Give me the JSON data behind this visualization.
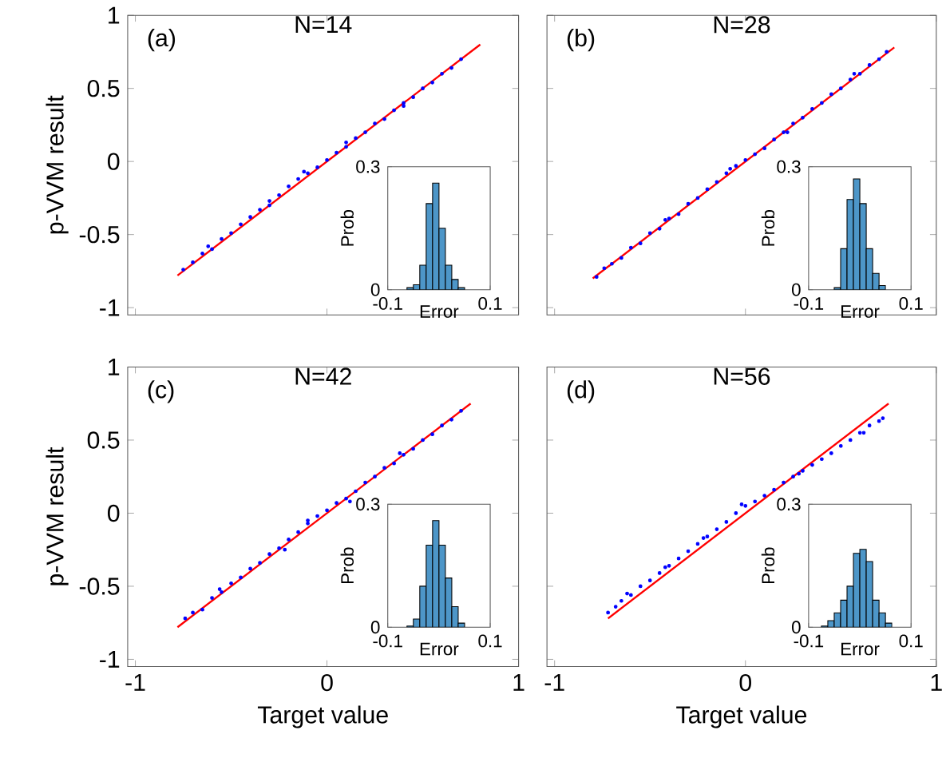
{
  "chart_data": [
    {
      "type": "scatter",
      "title": "N=14",
      "annotations": [
        "(a)"
      ],
      "ylabel": "p-VVM result",
      "xlim": [
        -1.04,
        1
      ],
      "ylim": [
        -1.05,
        1
      ],
      "xticks": [
        -1,
        0,
        1
      ],
      "yticks": [
        -1,
        -0.5,
        0,
        0.5,
        1
      ],
      "tick_labels": "y",
      "series": [
        {
          "type": "scatter",
          "marker": "circle",
          "color": "#0000ff",
          "x": [
            -0.75,
            -0.7,
            -0.65,
            -0.6,
            -0.55,
            -0.5,
            -0.45,
            -0.4,
            -0.35,
            -0.3,
            -0.25,
            -0.2,
            -0.15,
            -0.1,
            -0.05,
            0,
            0.05,
            0.1,
            0.15,
            0.2,
            0.25,
            0.3,
            0.35,
            0.4,
            0.45,
            0.5,
            0.55,
            0.6,
            0.65,
            0.7,
            -0.62,
            -0.3,
            -0.12,
            0.1,
            0.4
          ],
          "values": [
            -0.74,
            -0.69,
            -0.63,
            -0.6,
            -0.53,
            -0.49,
            -0.43,
            -0.38,
            -0.33,
            -0.27,
            -0.23,
            -0.17,
            -0.12,
            -0.08,
            -0.04,
            0.01,
            0.06,
            0.1,
            0.16,
            0.2,
            0.26,
            0.29,
            0.35,
            0.4,
            0.44,
            0.5,
            0.54,
            0.6,
            0.64,
            0.7,
            -0.58,
            -0.3,
            -0.07,
            0.13,
            0.38
          ]
        },
        {
          "type": "line",
          "marker": "none",
          "color": "#ff0000",
          "x": [
            -0.78,
            0.8
          ],
          "values": [
            -0.78,
            0.8
          ]
        }
      ]
    },
    {
      "type": "histogram",
      "xlabel": "Error",
      "ylabel": "Prob",
      "xlim": [
        -0.1,
        0.1
      ],
      "ylim": [
        0,
        0.3
      ],
      "xticks": [
        -0.1,
        0.1
      ],
      "yticks": [
        0,
        0.3
      ],
      "color": "#4d96c8",
      "bins": [
        -0.0625,
        -0.05,
        -0.0375,
        -0.025,
        -0.0125,
        0,
        0.0125,
        0.025,
        0.0375,
        0.05
      ],
      "values": [
        0.005,
        0.012,
        0.06,
        0.21,
        0.26,
        0.15,
        0.06,
        0.025,
        0.005
      ]
    },
    {
      "type": "scatter",
      "title": "N=28",
      "annotations": [
        "(b)"
      ],
      "xlim": [
        -1.04,
        1
      ],
      "ylim": [
        -1.05,
        1
      ],
      "xticks": [
        -1,
        0,
        1
      ],
      "yticks": [
        -1,
        -0.5,
        0,
        0.5,
        1
      ],
      "tick_labels": false,
      "series": [
        {
          "type": "scatter",
          "marker": "circle",
          "color": "#0000ff",
          "x": [
            -0.78,
            -0.74,
            -0.7,
            -0.65,
            -0.6,
            -0.55,
            -0.5,
            -0.45,
            -0.4,
            -0.35,
            -0.3,
            -0.25,
            -0.2,
            -0.15,
            -0.1,
            -0.05,
            0,
            0.05,
            0.1,
            0.15,
            0.2,
            0.25,
            0.3,
            0.35,
            0.4,
            0.45,
            0.5,
            0.55,
            0.6,
            0.65,
            0.7,
            0.74,
            -0.42,
            -0.08,
            0.22,
            0.57
          ],
          "values": [
            -0.79,
            -0.73,
            -0.7,
            -0.66,
            -0.59,
            -0.56,
            -0.49,
            -0.46,
            -0.39,
            -0.36,
            -0.29,
            -0.25,
            -0.19,
            -0.14,
            -0.08,
            -0.03,
            0.01,
            0.05,
            0.09,
            0.15,
            0.2,
            0.26,
            0.3,
            0.36,
            0.4,
            0.46,
            0.5,
            0.56,
            0.6,
            0.66,
            0.7,
            0.75,
            -0.4,
            -0.05,
            0.2,
            0.6
          ]
        },
        {
          "type": "line",
          "marker": "none",
          "color": "#ff0000",
          "x": [
            -0.8,
            0.78
          ],
          "values": [
            -0.8,
            0.78
          ]
        }
      ]
    },
    {
      "type": "histogram",
      "xlabel": "Error",
      "ylabel": "Prob",
      "xlim": [
        -0.1,
        0.1
      ],
      "ylim": [
        0,
        0.3
      ],
      "xticks": [
        -0.1,
        0.1
      ],
      "yticks": [
        0,
        0.3
      ],
      "color": "#4d96c8",
      "bins": [
        -0.05,
        -0.0375,
        -0.025,
        -0.0125,
        0,
        0.0125,
        0.025,
        0.0375,
        0.05
      ],
      "values": [
        0.005,
        0.1,
        0.22,
        0.27,
        0.21,
        0.1,
        0.04,
        0.01
      ]
    },
    {
      "type": "scatter",
      "title": "N=42",
      "annotations": [
        "(c)"
      ],
      "ylabel": "p-VVM result",
      "xlabel": "Target value",
      "xlim": [
        -1.04,
        1
      ],
      "ylim": [
        -1.05,
        1
      ],
      "xticks": [
        -1,
        0,
        1
      ],
      "yticks": [
        -1,
        -0.5,
        0,
        0.5,
        1
      ],
      "series": [
        {
          "type": "scatter",
          "marker": "circle",
          "color": "#0000ff",
          "x": [
            -0.74,
            -0.7,
            -0.65,
            -0.6,
            -0.55,
            -0.5,
            -0.45,
            -0.4,
            -0.35,
            -0.3,
            -0.25,
            -0.2,
            -0.15,
            -0.1,
            -0.05,
            0,
            0.05,
            0.1,
            0.15,
            0.2,
            0.25,
            0.3,
            0.35,
            0.4,
            0.45,
            0.5,
            0.55,
            0.6,
            0.65,
            0.7,
            -0.56,
            -0.22,
            -0.1,
            0.12,
            0.38
          ],
          "values": [
            -0.72,
            -0.68,
            -0.66,
            -0.58,
            -0.54,
            -0.48,
            -0.44,
            -0.38,
            -0.34,
            -0.28,
            -0.24,
            -0.18,
            -0.13,
            -0.07,
            -0.02,
            0.02,
            0.07,
            0.1,
            0.15,
            0.21,
            0.25,
            0.31,
            0.34,
            0.4,
            0.44,
            0.5,
            0.54,
            0.6,
            0.64,
            0.7,
            -0.52,
            -0.25,
            -0.05,
            0.08,
            0.41
          ]
        },
        {
          "type": "line",
          "marker": "none",
          "color": "#ff0000",
          "x": [
            -0.78,
            0.75
          ],
          "values": [
            -0.78,
            0.75
          ]
        }
      ]
    },
    {
      "type": "histogram",
      "xlabel": "Error",
      "ylabel": "Prob",
      "xlim": [
        -0.1,
        0.1
      ],
      "ylim": [
        0,
        0.3
      ],
      "xticks": [
        -0.1,
        0.1
      ],
      "yticks": [
        0,
        0.3
      ],
      "color": "#4d96c8",
      "bins": [
        -0.0625,
        -0.05,
        -0.0375,
        -0.025,
        -0.0125,
        0,
        0.0125,
        0.025,
        0.0375,
        0.05
      ],
      "values": [
        0.003,
        0.02,
        0.1,
        0.2,
        0.26,
        0.2,
        0.12,
        0.05,
        0.01
      ]
    },
    {
      "type": "scatter",
      "title": "N=56",
      "annotations": [
        "(d)"
      ],
      "xlabel": "Target value",
      "xlim": [
        -1.04,
        1
      ],
      "ylim": [
        -1.05,
        1
      ],
      "xticks": [
        -1,
        0,
        1
      ],
      "yticks": [
        -1,
        -0.5,
        0,
        0.5,
        1
      ],
      "tick_labels": "x",
      "series": [
        {
          "type": "scatter",
          "marker": "circle",
          "color": "#0000ff",
          "x": [
            -0.72,
            -0.68,
            -0.65,
            -0.6,
            -0.55,
            -0.5,
            -0.45,
            -0.4,
            -0.35,
            -0.3,
            -0.25,
            -0.2,
            -0.15,
            -0.1,
            -0.05,
            0,
            0.05,
            0.1,
            0.15,
            0.2,
            0.25,
            0.3,
            0.35,
            0.4,
            0.45,
            0.5,
            0.55,
            0.6,
            0.65,
            0.7,
            0.72,
            -0.62,
            -0.42,
            -0.22,
            -0.02,
            0.28,
            0.62
          ],
          "values": [
            -0.68,
            -0.64,
            -0.6,
            -0.56,
            -0.5,
            -0.46,
            -0.41,
            -0.36,
            -0.31,
            -0.26,
            -0.21,
            -0.16,
            -0.11,
            -0.06,
            0,
            0.05,
            0.08,
            0.12,
            0.16,
            0.21,
            0.25,
            0.29,
            0.33,
            0.37,
            0.41,
            0.46,
            0.5,
            0.55,
            0.6,
            0.63,
            0.65,
            -0.55,
            -0.37,
            -0.17,
            0.06,
            0.27,
            0.55
          ]
        },
        {
          "type": "line",
          "marker": "none",
          "color": "#ff0000",
          "x": [
            -0.72,
            0.75
          ],
          "values": [
            -0.72,
            0.75
          ]
        }
      ]
    },
    {
      "type": "histogram",
      "xlabel": "Error",
      "ylabel": "Prob",
      "xlim": [
        -0.1,
        0.1
      ],
      "ylim": [
        0,
        0.3
      ],
      "xticks": [
        -0.1,
        0.1
      ],
      "yticks": [
        0,
        0.3
      ],
      "color": "#4d96c8",
      "bins": [
        -0.075,
        -0.0625,
        -0.05,
        -0.0375,
        -0.025,
        -0.0125,
        0,
        0.0125,
        0.025,
        0.0375,
        0.05,
        0.0625
      ],
      "values": [
        0.003,
        0.016,
        0.035,
        0.066,
        0.1,
        0.18,
        0.19,
        0.16,
        0.066,
        0.035,
        0.01
      ]
    }
  ]
}
